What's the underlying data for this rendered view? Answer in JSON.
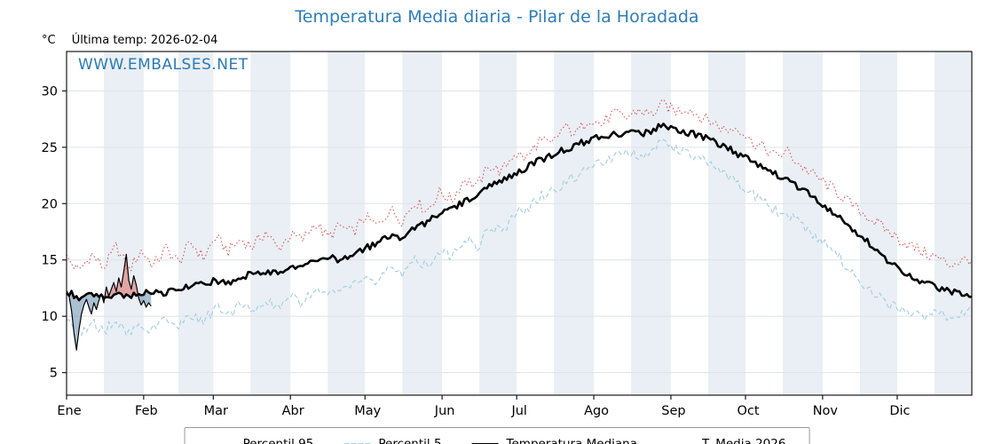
{
  "page": {
    "title": "Temperatura Media diaria - Pilar de la Horadada",
    "title_color": "#2e7eb8"
  },
  "header": {
    "unit_label": "°C",
    "last_temp_label": "Última temp: 2026-02-04"
  },
  "watermark": {
    "text": "WWW.EMBALSES.NET"
  },
  "legend": {
    "items": [
      {
        "label": "Percentil 95"
      },
      {
        "label": "Percentil 5"
      },
      {
        "label": "Temperatura Mediana"
      },
      {
        "label": "T. Media 2026"
      }
    ]
  },
  "chart_data": {
    "type": "line",
    "title": "Temperatura Media diaria - Pilar de la Horadada",
    "xlabel": "",
    "ylabel": "°C",
    "ylim": [
      3,
      33.5
    ],
    "yticks": [
      5,
      10,
      15,
      20,
      25,
      30
    ],
    "months": [
      "Ene",
      "Feb",
      "Mar",
      "Abr",
      "May",
      "Jun",
      "Jul",
      "Ago",
      "Sep",
      "Oct",
      "Nov",
      "Dic"
    ],
    "month_start_days": [
      1,
      32,
      60,
      91,
      121,
      152,
      182,
      213,
      244,
      274,
      305,
      335
    ],
    "band_color": "#e9eff5",
    "grid_color": "#dde3e8",
    "fill": {
      "above_color": "rgba(219,90,85,0.5)",
      "below_color": "rgba(100,140,175,0.55)"
    },
    "x_days": [
      1,
      6,
      11,
      16,
      21,
      26,
      31,
      36,
      41,
      46,
      51,
      56,
      61,
      66,
      71,
      76,
      81,
      86,
      91,
      96,
      101,
      106,
      111,
      116,
      121,
      126,
      131,
      136,
      141,
      146,
      151,
      156,
      161,
      166,
      171,
      176,
      181,
      186,
      191,
      196,
      201,
      206,
      211,
      216,
      221,
      226,
      231,
      236,
      241,
      246,
      251,
      256,
      261,
      266,
      271,
      276,
      281,
      286,
      291,
      296,
      301,
      306,
      311,
      316,
      321,
      326,
      331,
      336,
      341,
      346,
      351,
      356,
      361
    ],
    "series": [
      {
        "name": "Percentil 95",
        "color": "#d9534f",
        "style": "dotted",
        "jitter": 0.55,
        "values": [
          15.2,
          14.0,
          15.5,
          14.3,
          16.2,
          14.1,
          15.8,
          14.5,
          16.0,
          14.8,
          16.5,
          15.2,
          17.0,
          15.8,
          16.8,
          16.2,
          17.5,
          16.0,
          17.2,
          16.8,
          18.3,
          17.0,
          18.0,
          17.4,
          18.8,
          18.0,
          19.5,
          18.5,
          20.2,
          19.4,
          21.0,
          20.3,
          22.2,
          21.5,
          23.4,
          22.8,
          24.5,
          24.0,
          25.6,
          25.2,
          26.8,
          26.2,
          27.6,
          27.0,
          28.0,
          27.6,
          28.3,
          27.9,
          28.8,
          28.2,
          28.5,
          27.7,
          27.2,
          26.5,
          26.8,
          25.6,
          25.0,
          24.2,
          24.6,
          23.4,
          22.6,
          21.8,
          21.0,
          20.0,
          19.2,
          18.4,
          17.6,
          16.8,
          16.2,
          15.6,
          15.2,
          14.6,
          14.9
        ]
      },
      {
        "name": "Percentil 5",
        "color": "#a8cfe0",
        "style": "dashed",
        "jitter": 0.5,
        "values": [
          10.0,
          8.0,
          9.5,
          8.6,
          9.8,
          8.4,
          9.2,
          8.8,
          9.6,
          9.0,
          10.2,
          9.4,
          10.8,
          10.0,
          11.2,
          10.6,
          11.5,
          10.8,
          11.8,
          11.2,
          12.5,
          12.0,
          12.2,
          12.8,
          13.5,
          13.0,
          14.2,
          13.8,
          15.0,
          14.6,
          15.8,
          15.4,
          16.8,
          16.2,
          17.8,
          17.5,
          19.0,
          19.6,
          20.5,
          21.2,
          21.8,
          22.5,
          23.0,
          23.6,
          24.0,
          24.4,
          24.2,
          24.8,
          25.4,
          24.8,
          24.4,
          24.0,
          23.4,
          22.6,
          21.8,
          21.0,
          20.2,
          19.4,
          19.0,
          18.2,
          17.4,
          16.4,
          15.4,
          14.2,
          13.0,
          12.0,
          11.2,
          10.6,
          10.2,
          9.8,
          10.4,
          9.6,
          10.2
        ]
      },
      {
        "name": "Temperatura Mediana",
        "color": "#000000",
        "style": "solid-thick",
        "jitter": 0.3,
        "values": [
          12.2,
          11.6,
          11.9,
          11.7,
          12.0,
          11.8,
          12.1,
          12.3,
          12.0,
          12.4,
          12.6,
          12.9,
          13.2,
          13.0,
          13.5,
          13.8,
          14.0,
          13.7,
          14.2,
          14.6,
          15.0,
          15.3,
          14.9,
          15.4,
          16.0,
          16.5,
          17.2,
          17.0,
          17.8,
          18.4,
          19.0,
          19.5,
          20.2,
          20.8,
          21.5,
          22.0,
          22.6,
          23.2,
          23.8,
          24.3,
          24.8,
          25.2,
          25.6,
          26.0,
          26.2,
          26.3,
          26.2,
          26.4,
          27.0,
          26.5,
          26.3,
          26.0,
          25.5,
          25.0,
          24.4,
          23.8,
          23.2,
          22.6,
          22.0,
          21.3,
          20.6,
          19.8,
          19.0,
          18.0,
          17.0,
          16.0,
          15.0,
          14.2,
          13.5,
          13.0,
          12.6,
          12.2,
          11.9
        ]
      },
      {
        "name": "T. Media 2026",
        "color": "#000000",
        "style": "solid-thin",
        "jitter": 0,
        "x_days": [
          1,
          2,
          3,
          4,
          5,
          6,
          7,
          8,
          9,
          10,
          11,
          12,
          13,
          14,
          15,
          16,
          17,
          18,
          19,
          20,
          21,
          22,
          23,
          24,
          25,
          26,
          27,
          28,
          29,
          30,
          31,
          32,
          33,
          34,
          35
        ],
        "values": [
          12.3,
          11.8,
          10.5,
          8.5,
          7.0,
          8.8,
          10.2,
          11.0,
          11.5,
          10.8,
          10.2,
          11.2,
          10.6,
          11.4,
          12.0,
          11.2,
          12.6,
          11.8,
          12.4,
          13.0,
          12.2,
          13.4,
          12.6,
          14.0,
          15.5,
          13.2,
          12.4,
          13.6,
          12.8,
          11.6,
          11.0,
          11.4,
          10.8,
          11.2,
          10.9
        ]
      }
    ]
  }
}
